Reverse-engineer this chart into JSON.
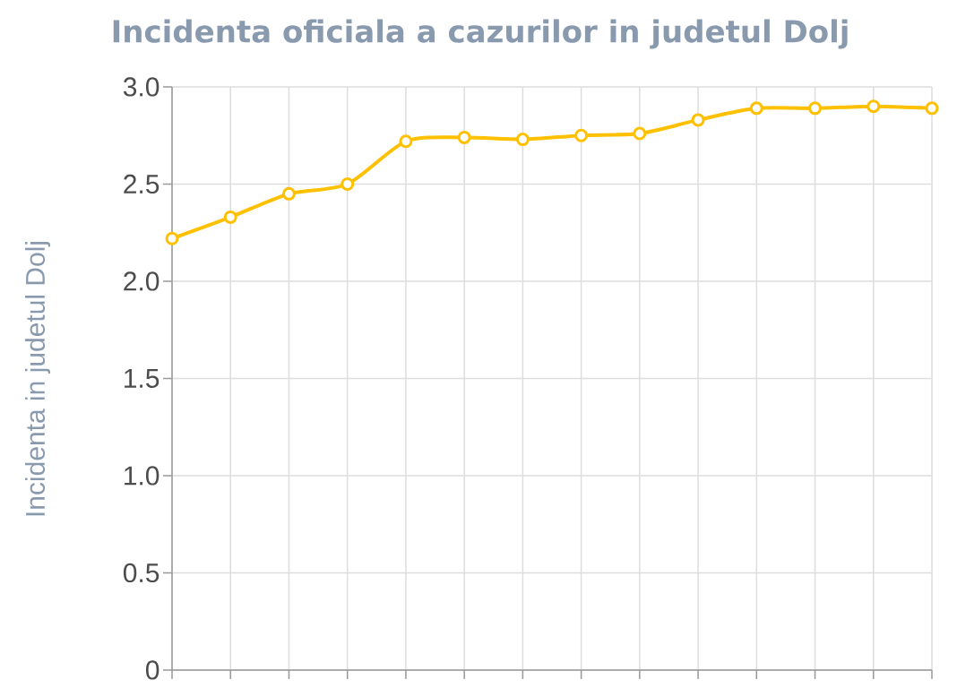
{
  "chart_data": {
    "type": "line",
    "title": "Incidenta oficiala a cazurilor in judetul Dolj",
    "ylabel": "Incidenta in judetul Dolj",
    "categories": [
      null,
      null,
      null,
      null,
      null,
      null,
      null,
      null,
      null,
      null,
      null,
      null,
      null,
      null
    ],
    "values": [
      2.22,
      2.33,
      2.45,
      2.5,
      2.72,
      2.74,
      2.73,
      2.75,
      2.76,
      2.83,
      2.89,
      2.89,
      2.9,
      2.89
    ],
    "color": "#ffc000",
    "ylim": [
      0,
      3
    ],
    "yticks": [
      {
        "value": 0,
        "label": "0"
      },
      {
        "value": 0.5,
        "label": "0.5"
      },
      {
        "value": 1,
        "label": "1.0"
      },
      {
        "value": 1.5,
        "label": "1.5"
      },
      {
        "value": 2,
        "label": "2.0"
      },
      {
        "value": 2.5,
        "label": "2.5"
      },
      {
        "value": 3,
        "label": "3.0"
      }
    ],
    "grid": true,
    "marker": "circle",
    "line_style": "solid",
    "tick_labels": "y"
  }
}
